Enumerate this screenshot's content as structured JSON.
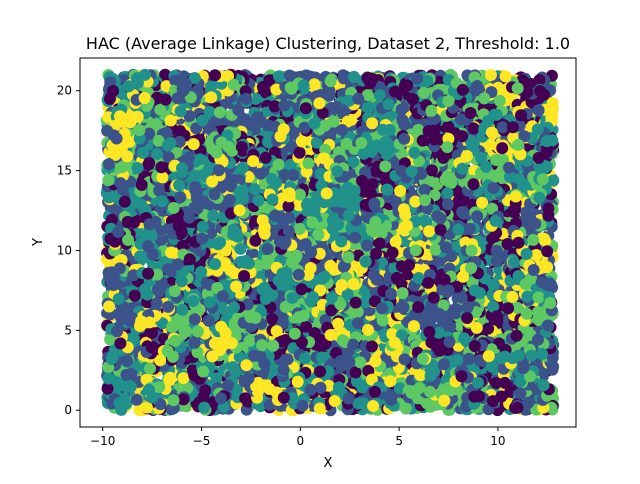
{
  "chart_data": {
    "type": "scatter",
    "title": "HAC (Average Linkage) Clustering, Dataset 2, Threshold: 1.0",
    "xlabel": "X",
    "ylabel": "Y",
    "xlim": [
      -11.15,
      13.95
    ],
    "ylim": [
      -1.05,
      22.05
    ],
    "xticks": [
      -10,
      -5,
      0,
      5,
      10
    ],
    "xtick_labels": [
      "−10",
      "−5",
      "0",
      "5",
      "10"
    ],
    "yticks": [
      0,
      5,
      10,
      15,
      20
    ],
    "ytick_labels": [
      "0",
      "5",
      "10",
      "15",
      "20"
    ],
    "grid": false,
    "legend": "none",
    "colormap": "viridis",
    "colormap_colors": [
      "#440154",
      "#3b528b",
      "#21918c",
      "#5ec962",
      "#fde725"
    ],
    "point_domain": {
      "x": [
        -9.8,
        12.8
      ],
      "y": [
        0.0,
        21.0
      ]
    },
    "approx_point_count": 9000,
    "cluster_color_share": {
      "#440154": 0.14,
      "#3b528b": 0.3,
      "#21918c": 0.3,
      "#5ec962": 0.16,
      "#fde725": 0.1
    }
  }
}
